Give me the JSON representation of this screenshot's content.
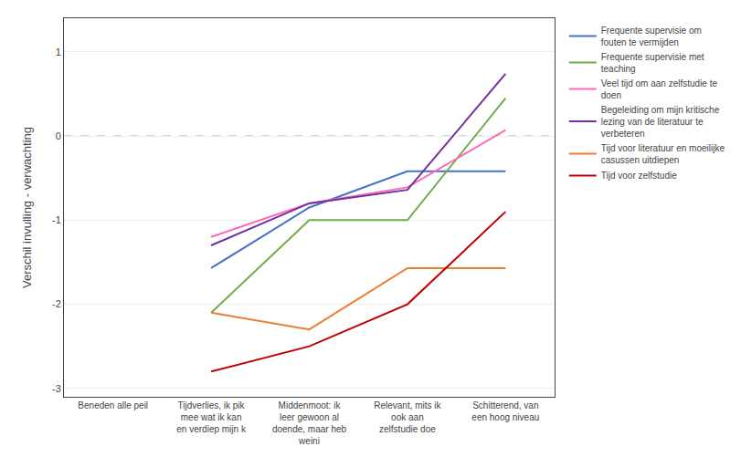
{
  "chart_data": {
    "type": "line",
    "ylabel": "Verschil invulling - verwachting",
    "categories": [
      "Beneden alle peil",
      "Tijdverlies, ik pik\nmee wat ik kan\nen verdiep mijn k",
      "Middenmoot: ik\nleer gewoon al\ndoende, maar heb\nweini",
      "Relevant, mits ik\nook aan\nzelfstudie doe",
      "Schitterend, van\neen hoog niveau"
    ],
    "series": [
      {
        "name": "Frequente supervisie om\nfouten te vermijden",
        "color": "#4472c4",
        "values": [
          null,
          -1.57,
          -0.85,
          -0.42,
          -0.42
        ]
      },
      {
        "name": "Frequente supervisie met\nteaching",
        "color": "#70ad47",
        "values": [
          null,
          -2.1,
          -1.0,
          -1.0,
          0.45
        ]
      },
      {
        "name": "Veel tijd om aan zelfstudie te\ndoen",
        "color": "#ff69b4",
        "values": [
          null,
          -1.2,
          -0.8,
          -0.61,
          0.07
        ]
      },
      {
        "name": "Begeleiding om mijn kritische\nlezing van de literatuur te\nverbeteren",
        "color": "#7030a0",
        "values": [
          null,
          -1.3,
          -0.8,
          -0.64,
          0.74
        ]
      },
      {
        "name": "Tijd voor literatuur en moeilijke\ncasussen uitdiepen",
        "color": "#ed7d31",
        "values": [
          null,
          -2.1,
          -2.3,
          -1.57,
          -1.57
        ]
      },
      {
        "name": "Tijd voor zelfstudie",
        "color": "#c00000",
        "values": [
          null,
          -2.8,
          -2.5,
          -2.0,
          -0.9
        ]
      }
    ],
    "hline": {
      "value": 0,
      "color": "#999999",
      "line_style": "dashed"
    },
    "ylim": [
      -3.1,
      1.4
    ],
    "yticks": [
      -3,
      -2,
      -1,
      0,
      1
    ],
    "grid": true,
    "legend": "right"
  }
}
